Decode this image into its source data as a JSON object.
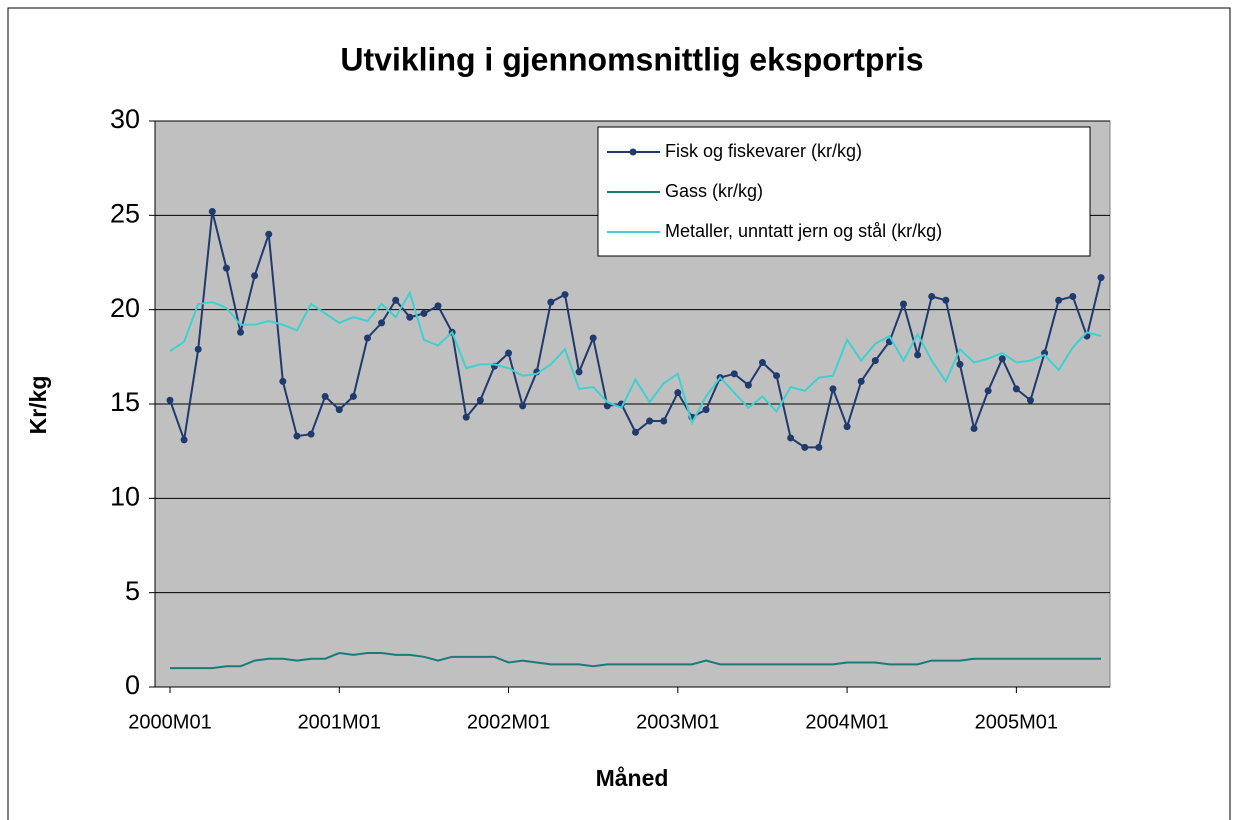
{
  "chart_data": {
    "type": "line",
    "title": "Utvikling i gjennomsnittlig eksportpris",
    "x_label": "Måned",
    "y_label": "Kr/kg",
    "categories": [
      "2000M01",
      null,
      null,
      null,
      null,
      null,
      null,
      null,
      null,
      null,
      null,
      null,
      "2001M01",
      null,
      null,
      null,
      null,
      null,
      null,
      null,
      null,
      null,
      null,
      null,
      "2002M01",
      null,
      null,
      null,
      null,
      null,
      null,
      null,
      null,
      null,
      null,
      null,
      "2003M01",
      null,
      null,
      null,
      null,
      null,
      null,
      null,
      null,
      null,
      null,
      null,
      "2004M01",
      null,
      null,
      null,
      null,
      null,
      null,
      null,
      null,
      null,
      null,
      null,
      "2005M01",
      null,
      null,
      null,
      null,
      null,
      null
    ],
    "series": [
      {
        "name": "Fisk og fiskevarer (kr/kg)",
        "color": "#1f3a6e",
        "markers": true,
        "values": [
          15.2,
          13.1,
          17.9,
          25.2,
          22.2,
          18.8,
          21.8,
          24.0,
          16.2,
          13.3,
          13.4,
          15.4,
          14.7,
          15.4,
          18.5,
          19.3,
          20.5,
          19.6,
          19.8,
          20.2,
          18.8,
          14.3,
          15.2,
          17.0,
          17.7,
          14.9,
          16.7,
          20.4,
          20.8,
          16.7,
          18.5,
          14.9,
          15.0,
          13.5,
          14.1,
          14.1,
          15.6,
          14.3,
          14.7,
          16.4,
          16.6,
          16.0,
          17.2,
          16.5,
          13.2,
          12.7,
          12.7,
          15.8,
          13.8,
          16.2,
          17.3,
          18.3,
          20.3,
          17.6,
          20.7,
          20.5,
          17.1,
          13.7,
          15.7,
          17.4,
          15.8,
          15.2,
          17.7,
          20.5,
          20.7,
          18.6,
          21.7
        ]
      },
      {
        "name": "Gass (kr/kg)",
        "color": "#1a7a7a",
        "markers": false,
        "values": [
          1.0,
          1.0,
          1.0,
          1.0,
          1.1,
          1.1,
          1.4,
          1.5,
          1.5,
          1.4,
          1.5,
          1.5,
          1.8,
          1.7,
          1.8,
          1.8,
          1.7,
          1.7,
          1.6,
          1.4,
          1.6,
          1.6,
          1.6,
          1.6,
          1.3,
          1.4,
          1.3,
          1.2,
          1.2,
          1.2,
          1.1,
          1.2,
          1.2,
          1.2,
          1.2,
          1.2,
          1.2,
          1.2,
          1.4,
          1.2,
          1.2,
          1.2,
          1.2,
          1.2,
          1.2,
          1.2,
          1.2,
          1.2,
          1.3,
          1.3,
          1.3,
          1.2,
          1.2,
          1.2,
          1.4,
          1.4,
          1.4,
          1.5,
          1.5,
          1.5,
          1.5,
          1.5,
          1.5,
          1.5,
          1.5,
          1.5,
          1.5
        ]
      },
      {
        "name": "Metaller, unntatt jern og stål (kr/kg)",
        "color": "#40d0d0",
        "markers": false,
        "values": [
          17.8,
          18.3,
          20.3,
          20.4,
          20.1,
          19.2,
          19.2,
          19.4,
          19.2,
          18.9,
          20.3,
          19.8,
          19.3,
          19.6,
          19.4,
          20.3,
          19.6,
          20.9,
          18.4,
          18.1,
          18.8,
          16.9,
          17.1,
          17.1,
          16.9,
          16.5,
          16.6,
          17.1,
          17.9,
          15.8,
          15.9,
          15.1,
          14.8,
          16.3,
          15.1,
          16.1,
          16.6,
          14.0,
          15.4,
          16.4,
          15.6,
          14.8,
          15.4,
          14.6,
          15.9,
          15.7,
          16.4,
          16.5,
          18.4,
          17.3,
          18.2,
          18.6,
          17.3,
          18.7,
          17.3,
          16.2,
          17.9,
          17.2,
          17.4,
          17.7,
          17.2,
          17.3,
          17.6,
          16.8,
          18.0,
          18.8,
          18.6
        ]
      }
    ],
    "ylim": [
      0,
      30
    ],
    "yticks": [
      0,
      5,
      10,
      15,
      20,
      25,
      30
    ],
    "grid": true,
    "legend": "upper right",
    "plot_background": "#c0c0c0"
  }
}
